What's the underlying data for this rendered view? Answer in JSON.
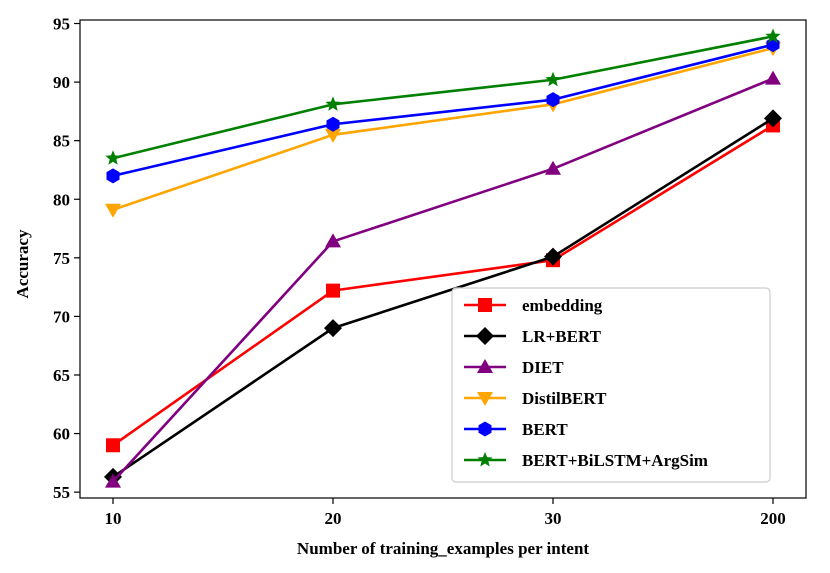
{
  "chart_data": {
    "type": "line",
    "title": "",
    "xlabel": "Number of training_examples per intent",
    "ylabel": "Accuracy",
    "categories": [
      "10",
      "20",
      "30",
      "200"
    ],
    "ylim": [
      54.5,
      95.3
    ],
    "yticks": [
      55,
      60,
      65,
      70,
      75,
      80,
      85,
      90,
      95
    ],
    "ytick_labels": [
      "55",
      "60",
      "65",
      "70",
      "75",
      "80",
      "85",
      "90",
      "95"
    ],
    "legend_position": "lower-right",
    "series": [
      {
        "name": "embedding",
        "color": "#ff0000",
        "marker": "square",
        "values": [
          59.0,
          72.2,
          74.8,
          86.3
        ]
      },
      {
        "name": "LR+BERT",
        "color": "#000000",
        "marker": "diamond",
        "values": [
          56.3,
          69.0,
          75.1,
          86.9
        ]
      },
      {
        "name": "DIET",
        "color": "#800080",
        "marker": "triangle-up",
        "values": [
          55.9,
          76.4,
          82.6,
          90.3
        ]
      },
      {
        "name": "DistilBERT",
        "color": "#ffa500",
        "marker": "triangle-down",
        "values": [
          79.1,
          85.5,
          88.1,
          92.9
        ]
      },
      {
        "name": "BERT",
        "color": "#0000ff",
        "marker": "hexagon",
        "values": [
          82.0,
          86.4,
          88.5,
          93.2
        ]
      },
      {
        "name": "BERT+BiLSTM+ArgSim",
        "color": "#008000",
        "marker": "star",
        "values": [
          83.5,
          88.1,
          90.2,
          93.9
        ]
      }
    ]
  }
}
